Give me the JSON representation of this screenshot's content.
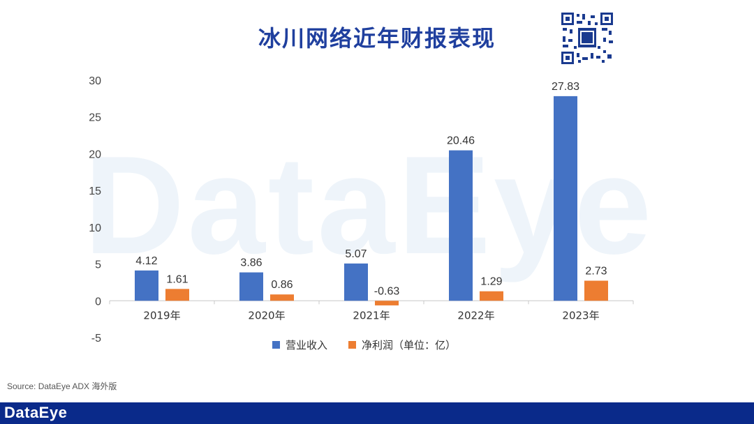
{
  "header": {
    "title": "冰川网络近年财报表现"
  },
  "watermark": {
    "text": "DataEye"
  },
  "footer": {
    "source": "Source: DataEye ADX 海外版",
    "logo": "DataEye"
  },
  "colors": {
    "revenue": "#4472c4",
    "profit": "#ed7d31",
    "title": "#1f3f9e",
    "footer": "#0a2a8a"
  },
  "chart_data": {
    "type": "bar",
    "categories": [
      "2019年",
      "2020年",
      "2021年",
      "2022年",
      "2023年"
    ],
    "series": [
      {
        "name": "营业收入",
        "values": [
          4.12,
          3.86,
          5.07,
          20.46,
          27.83
        ]
      },
      {
        "name": "净利润（单位：亿）",
        "values": [
          1.61,
          0.86,
          -0.63,
          1.29,
          2.73
        ]
      }
    ],
    "ylim": [
      -5,
      30
    ],
    "yticks": [
      30,
      25,
      20,
      15,
      10,
      5,
      0,
      -5
    ],
    "grid": false,
    "legend": "bottom"
  }
}
